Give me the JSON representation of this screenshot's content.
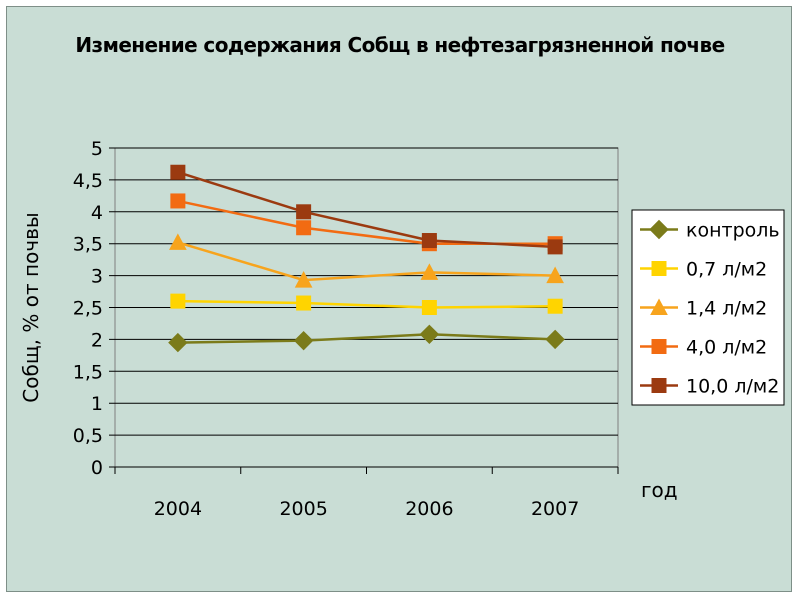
{
  "chart_data": {
    "type": "line",
    "title": "Изменение содержания Собщ в нефтезагрязненной почве",
    "xlabel": "год",
    "ylabel": "Собщ, % от почвы",
    "categories": [
      "2004",
      "2005",
      "2006",
      "2007"
    ],
    "ylim": [
      0,
      5
    ],
    "yticks": [
      "0",
      "0,5",
      "1",
      "1,5",
      "2",
      "2,5",
      "3",
      "3,5",
      "4",
      "4,5",
      "5"
    ],
    "grid": true,
    "legend_position": "right",
    "series": [
      {
        "name": "контроль",
        "values": [
          1.95,
          1.98,
          2.08,
          2.0
        ],
        "color": "#7b7b1a",
        "marker": "diamond"
      },
      {
        "name": "0,7 л/м2",
        "values": [
          2.6,
          2.57,
          2.5,
          2.52
        ],
        "color": "#ffd400",
        "marker": "square"
      },
      {
        "name": "1,4 л/м2",
        "values": [
          3.52,
          2.93,
          3.05,
          3.0
        ],
        "color": "#f7a41d",
        "marker": "triangle"
      },
      {
        "name": "4,0 л/м2",
        "values": [
          4.17,
          3.75,
          3.5,
          3.5
        ],
        "color": "#f26b12",
        "marker": "square"
      },
      {
        "name": "10,0 л/м2",
        "values": [
          4.62,
          4.0,
          3.55,
          3.45
        ],
        "color": "#9b3a10",
        "marker": "square"
      }
    ]
  }
}
